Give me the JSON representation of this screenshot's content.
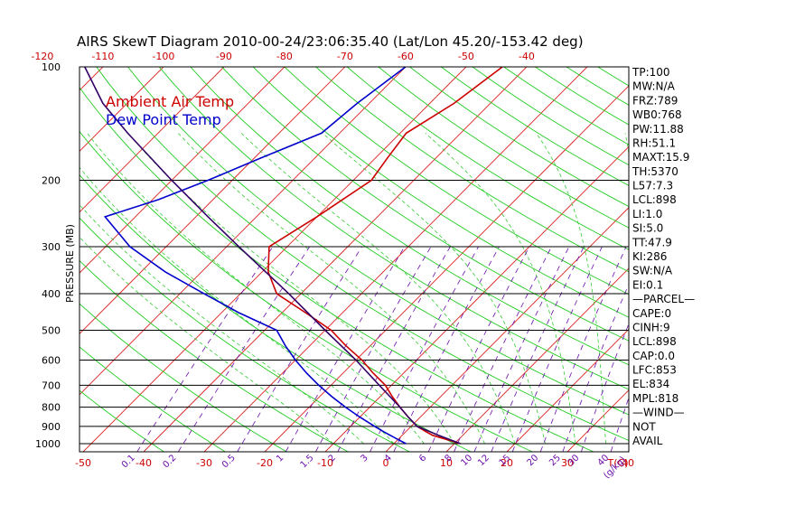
{
  "chart_data": {
    "type": "line",
    "title": "AIRS SkewT Diagram 2010-00-24/23:06:35.40 (Lat/Lon 45.20/-153.42 deg)",
    "ylabel": "PRESSURE (MB)",
    "y_scale": "log",
    "ylim": [
      1050,
      100
    ],
    "pressure_ticks": [
      {
        "p": 100,
        "label": "100"
      },
      {
        "p": 200,
        "label": "200"
      },
      {
        "p": 300,
        "label": "300"
      },
      {
        "p": 400,
        "label": "400"
      },
      {
        "p": 500,
        "label": "500"
      },
      {
        "p": 600,
        "label": "600"
      },
      {
        "p": 700,
        "label": "700"
      },
      {
        "p": 800,
        "label": "800"
      },
      {
        "p": 900,
        "label": "900"
      },
      {
        "p": 1000,
        "label": "1000"
      }
    ],
    "temperature_ticks_top": [
      "-120",
      "-110",
      "-100",
      "-90",
      "-80",
      "-70",
      "-60",
      "-50",
      "-40"
    ],
    "temperature_ticks_bottom": [
      "-50",
      "-40",
      "-30",
      "-20",
      "-10",
      "0",
      "10",
      "20",
      "30",
      "40"
    ],
    "temperature_unit_label": "T(C)",
    "mixing_ratio_labels": [
      "0.1",
      "0.2",
      "0.5",
      "1",
      "1.5",
      "2",
      "3",
      "4",
      "6",
      "8",
      "10",
      "12",
      "15",
      "20",
      "25",
      "30",
      "40"
    ],
    "mixing_ratio_unit_label": "(g/kg)",
    "legend": [
      {
        "name": "Ambient Air Temp",
        "color": "#cc0000"
      },
      {
        "name": "Dew Point Temp",
        "color": "#0000cc"
      }
    ],
    "series": [
      {
        "name": "Ambient Air Temp",
        "color": "#cc0000",
        "points": [
          {
            "p": 1000,
            "t": 11
          },
          {
            "p": 975,
            "t": 8
          },
          {
            "p": 950,
            "t": 5
          },
          {
            "p": 925,
            "t": 3
          },
          {
            "p": 900,
            "t": 1
          },
          {
            "p": 850,
            "t": -2
          },
          {
            "p": 800,
            "t": -5
          },
          {
            "p": 750,
            "t": -8
          },
          {
            "p": 700,
            "t": -11
          },
          {
            "p": 650,
            "t": -15
          },
          {
            "p": 600,
            "t": -19
          },
          {
            "p": 550,
            "t": -24
          },
          {
            "p": 500,
            "t": -29
          },
          {
            "p": 450,
            "t": -36
          },
          {
            "p": 400,
            "t": -44
          },
          {
            "p": 350,
            "t": -49
          },
          {
            "p": 300,
            "t": -53
          },
          {
            "p": 250,
            "t": -50
          },
          {
            "p": 200,
            "t": -47
          },
          {
            "p": 175,
            "t": -48
          },
          {
            "p": 150,
            "t": -49
          },
          {
            "p": 125,
            "t": -46
          },
          {
            "p": 100,
            "t": -44
          }
        ]
      },
      {
        "name": "Dew Point Temp",
        "color": "#0000cc",
        "points": [
          {
            "p": 1000,
            "t": 2
          },
          {
            "p": 975,
            "t": 0
          },
          {
            "p": 950,
            "t": -2
          },
          {
            "p": 925,
            "t": -4
          },
          {
            "p": 900,
            "t": -6
          },
          {
            "p": 850,
            "t": -10
          },
          {
            "p": 800,
            "t": -14
          },
          {
            "p": 750,
            "t": -18
          },
          {
            "p": 700,
            "t": -22
          },
          {
            "p": 650,
            "t": -26
          },
          {
            "p": 600,
            "t": -30
          },
          {
            "p": 550,
            "t": -34
          },
          {
            "p": 500,
            "t": -38
          },
          {
            "p": 450,
            "t": -47
          },
          {
            "p": 400,
            "t": -56
          },
          {
            "p": 350,
            "t": -66
          },
          {
            "p": 300,
            "t": -76
          },
          {
            "p": 250,
            "t": -85
          },
          {
            "p": 225,
            "t": -79
          },
          {
            "p": 200,
            "t": -74
          },
          {
            "p": 175,
            "t": -69
          },
          {
            "p": 150,
            "t": -63
          },
          {
            "p": 125,
            "t": -62
          },
          {
            "p": 100,
            "t": -60
          }
        ]
      },
      {
        "name": "Parcel",
        "color": "#330066",
        "points": [
          {
            "p": 1000,
            "t": 11
          },
          {
            "p": 950,
            "t": 6
          },
          {
            "p": 900,
            "t": 1
          },
          {
            "p": 850,
            "t": -2
          },
          {
            "p": 800,
            "t": -5
          },
          {
            "p": 700,
            "t": -12
          },
          {
            "p": 600,
            "t": -20
          },
          {
            "p": 500,
            "t": -30
          },
          {
            "p": 400,
            "t": -42
          },
          {
            "p": 300,
            "t": -58
          },
          {
            "p": 250,
            "t": -68
          },
          {
            "p": 200,
            "t": -80
          },
          {
            "p": 150,
            "t": -95
          },
          {
            "p": 125,
            "t": -104
          },
          {
            "p": 100,
            "t": -113
          }
        ]
      }
    ]
  },
  "indices": [
    "TP:100",
    "MW:N/A",
    "FRZ:789",
    "WB0:768",
    "PW:11.88",
    "RH:51.1",
    "MAXT:15.9",
    "TH:5370",
    "L57:7.3",
    "LCL:898",
    "LI:1.0",
    "SI:5.0",
    "TT:47.9",
    "KI:286",
    "SW:N/A",
    "EI:0.1",
    "—PARCEL—",
    "CAPE:0",
    "CINH:9",
    "LCL:898",
    "CAP:0.0",
    "LFC:853",
    "EL:834",
    "MPL:818",
    "—WIND—",
    "NOT",
    "AVAIL"
  ]
}
